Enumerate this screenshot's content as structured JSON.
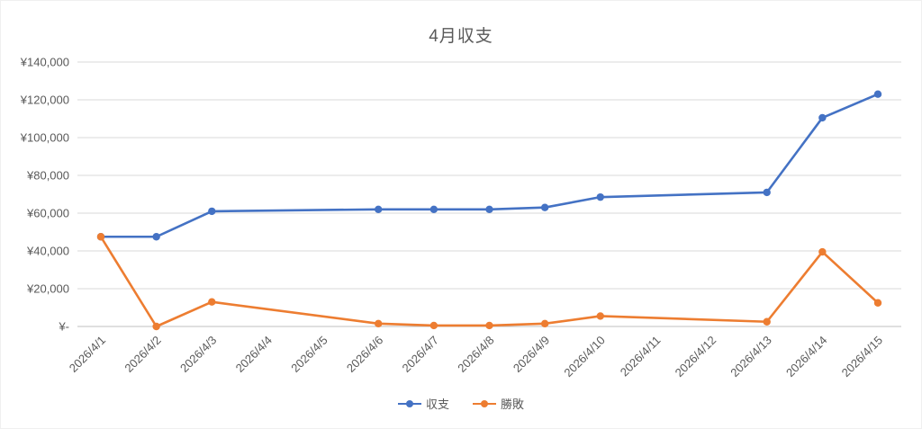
{
  "chart_data": {
    "type": "line",
    "title": "4月収支",
    "categories": [
      "2026/4/1",
      "2026/4/2",
      "2026/4/3",
      "2026/4/4",
      "2026/4/5",
      "2026/4/6",
      "2026/4/7",
      "2026/4/8",
      "2026/4/9",
      "2026/4/10",
      "2026/4/11",
      "2026/4/12",
      "2026/4/13",
      "2026/4/14",
      "2026/4/15"
    ],
    "series": [
      {
        "name": "収支",
        "color": "#4472C4",
        "values": [
          47500,
          47500,
          61000,
          null,
          null,
          62000,
          62000,
          62000,
          63000,
          68500,
          null,
          null,
          71000,
          110500,
          123000
        ]
      },
      {
        "name": "勝敗",
        "color": "#ED7D31",
        "values": [
          47500,
          0,
          13000,
          null,
          null,
          1500,
          500,
          500,
          1500,
          5500,
          null,
          null,
          2500,
          39500,
          12500
        ]
      }
    ],
    "ylim": [
      0,
      140000
    ],
    "y_tick_step": 20000,
    "y_tick_labels": [
      "¥-",
      "¥20,000",
      "¥40,000",
      "¥60,000",
      "¥80,000",
      "¥100,000",
      "¥120,000",
      "¥140,000"
    ],
    "xlabel": "",
    "ylabel": "",
    "grid": true,
    "legend_position": "bottom",
    "colors": {
      "gridline": "#D9D9D9",
      "axis_line": "#BFBFBF",
      "tick_label": "#595959",
      "title": "#595959"
    }
  }
}
